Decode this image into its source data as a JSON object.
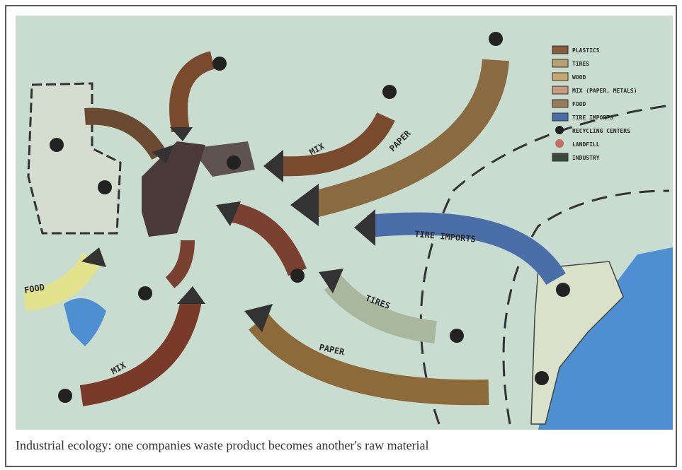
{
  "caption": "Industrial ecology: one companies waste product becomes another's raw material",
  "arrow_labels": [
    "PAPER",
    "MIX",
    "TIRE IMPORTS",
    "TIRES",
    "PAPER",
    "MIX",
    "FOOD"
  ],
  "legend": [
    "PLASTICS",
    "TIRES",
    "WOOD",
    "MIX (PAPER, METALS)",
    "FOOD",
    "TIRE IMPORTS",
    "RECYCLING CENTERS",
    "LANDFILL",
    "INDUSTRY"
  ]
}
